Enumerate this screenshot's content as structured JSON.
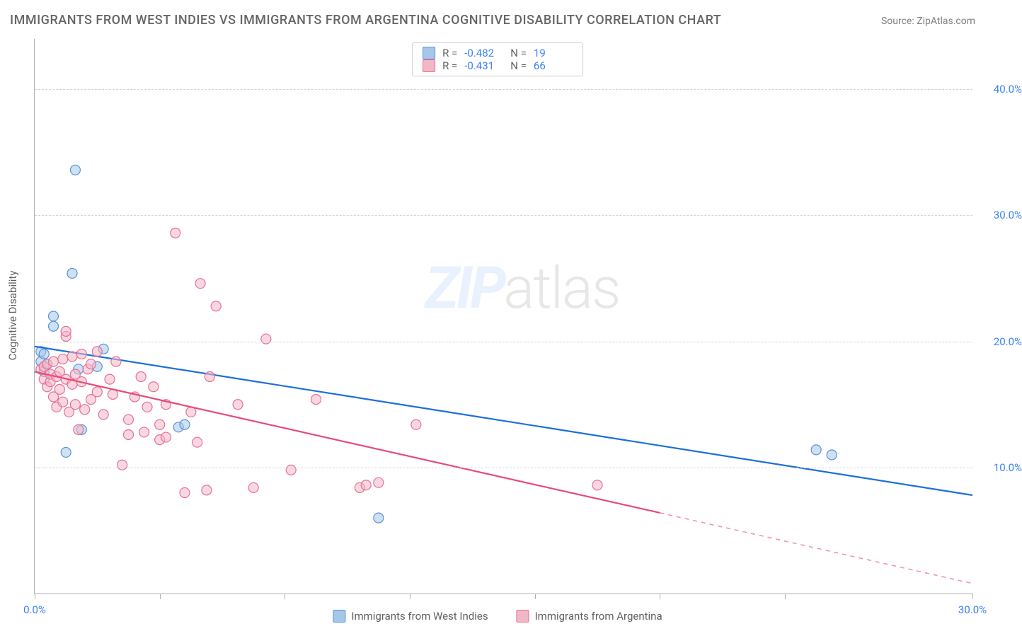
{
  "title": "IMMIGRANTS FROM WEST INDIES VS IMMIGRANTS FROM ARGENTINA COGNITIVE DISABILITY CORRELATION CHART",
  "source": "Source: ZipAtlas.com",
  "y_axis_title": "Cognitive Disability",
  "watermark": {
    "bold": "ZIP",
    "light": "atlas"
  },
  "chart": {
    "type": "scatter",
    "background_color": "#ffffff",
    "grid_color": "#d4d4d4",
    "axis_color": "#b0b0b0",
    "tick_label_color": "#3b82f6",
    "tick_fontsize": 15,
    "xlim": [
      0,
      30
    ],
    "ylim": [
      0,
      44
    ],
    "y_ticks": [
      10,
      20,
      30,
      40
    ],
    "y_tick_labels": [
      "10.0%",
      "20.0%",
      "30.0%",
      "40.0%"
    ],
    "x_ticks": [
      0,
      4,
      8,
      12,
      16,
      20,
      24,
      30
    ],
    "x_tick_labels": {
      "0": "0.0%",
      "30": "30.0%"
    },
    "marker_radius": 7,
    "marker_stroke_width": 1.2,
    "line_width": 2.2,
    "series": [
      {
        "id": "west_indies",
        "label": "Immigrants from West Indies",
        "fill": "#a7c7ea",
        "stroke": "#5894d8",
        "line_color": "#1d6fd8",
        "r": -0.482,
        "n": 19,
        "trend": {
          "x1": 0,
          "y1": 19.6,
          "x2": 30,
          "y2": 7.8,
          "dash_from_x": 30
        },
        "points": [
          [
            0.2,
            19.2
          ],
          [
            0.2,
            18.4
          ],
          [
            0.3,
            17.6
          ],
          [
            0.3,
            19.0
          ],
          [
            0.4,
            18.2
          ],
          [
            0.6,
            21.2
          ],
          [
            0.6,
            22.0
          ],
          [
            1.0,
            11.2
          ],
          [
            1.2,
            25.4
          ],
          [
            1.3,
            33.6
          ],
          [
            1.4,
            17.8
          ],
          [
            1.5,
            13.0
          ],
          [
            2.0,
            18.0
          ],
          [
            2.2,
            19.4
          ],
          [
            4.6,
            13.2
          ],
          [
            4.8,
            13.4
          ],
          [
            11.0,
            6.0
          ],
          [
            25.0,
            11.4
          ],
          [
            25.5,
            11.0
          ]
        ]
      },
      {
        "id": "argentina",
        "label": "Immigrants from Argentina",
        "fill": "#f3b8c7",
        "stroke": "#e77096",
        "line_color": "#e64b7b",
        "r": -0.431,
        "n": 66,
        "trend": {
          "x1": 0,
          "y1": 17.6,
          "x2": 30,
          "y2": 0.8,
          "dash_from_x": 20
        },
        "points": [
          [
            0.2,
            17.8
          ],
          [
            0.3,
            17.0
          ],
          [
            0.3,
            18.0
          ],
          [
            0.4,
            16.4
          ],
          [
            0.4,
            18.2
          ],
          [
            0.5,
            16.8
          ],
          [
            0.5,
            17.4
          ],
          [
            0.6,
            15.6
          ],
          [
            0.6,
            18.4
          ],
          [
            0.7,
            17.2
          ],
          [
            0.7,
            14.8
          ],
          [
            0.8,
            16.2
          ],
          [
            0.8,
            17.6
          ],
          [
            0.9,
            15.2
          ],
          [
            0.9,
            18.6
          ],
          [
            1.0,
            17.0
          ],
          [
            1.0,
            20.4
          ],
          [
            1.0,
            20.8
          ],
          [
            1.1,
            14.4
          ],
          [
            1.2,
            16.6
          ],
          [
            1.2,
            18.8
          ],
          [
            1.3,
            15.0
          ],
          [
            1.3,
            17.4
          ],
          [
            1.4,
            13.0
          ],
          [
            1.5,
            16.8
          ],
          [
            1.5,
            19.0
          ],
          [
            1.6,
            14.6
          ],
          [
            1.7,
            17.8
          ],
          [
            1.8,
            15.4
          ],
          [
            1.8,
            18.2
          ],
          [
            2.0,
            16.0
          ],
          [
            2.0,
            19.2
          ],
          [
            2.2,
            14.2
          ],
          [
            2.4,
            17.0
          ],
          [
            2.5,
            15.8
          ],
          [
            2.6,
            18.4
          ],
          [
            2.8,
            10.2
          ],
          [
            3.0,
            13.8
          ],
          [
            3.0,
            12.6
          ],
          [
            3.2,
            15.6
          ],
          [
            3.4,
            17.2
          ],
          [
            3.5,
            12.8
          ],
          [
            3.6,
            14.8
          ],
          [
            3.8,
            16.4
          ],
          [
            4.0,
            13.4
          ],
          [
            4.0,
            12.2
          ],
          [
            4.2,
            15.0
          ],
          [
            4.2,
            12.4
          ],
          [
            4.5,
            28.6
          ],
          [
            4.8,
            8.0
          ],
          [
            5.0,
            14.4
          ],
          [
            5.2,
            12.0
          ],
          [
            5.3,
            24.6
          ],
          [
            5.5,
            8.2
          ],
          [
            5.6,
            17.2
          ],
          [
            5.8,
            22.8
          ],
          [
            6.5,
            15.0
          ],
          [
            7.0,
            8.4
          ],
          [
            7.4,
            20.2
          ],
          [
            8.2,
            9.8
          ],
          [
            9.0,
            15.4
          ],
          [
            10.4,
            8.4
          ],
          [
            10.6,
            8.6
          ],
          [
            11.0,
            8.8
          ],
          [
            12.2,
            13.4
          ],
          [
            18.0,
            8.6
          ]
        ]
      }
    ]
  },
  "legend_top": [
    {
      "series": 0,
      "r_label": "R =",
      "r_val": "-0.482",
      "n_label": "N =",
      "n_val": "19"
    },
    {
      "series": 1,
      "r_label": "R =",
      "r_val": "-0.431",
      "n_label": "N =",
      "n_val": "66"
    }
  ]
}
